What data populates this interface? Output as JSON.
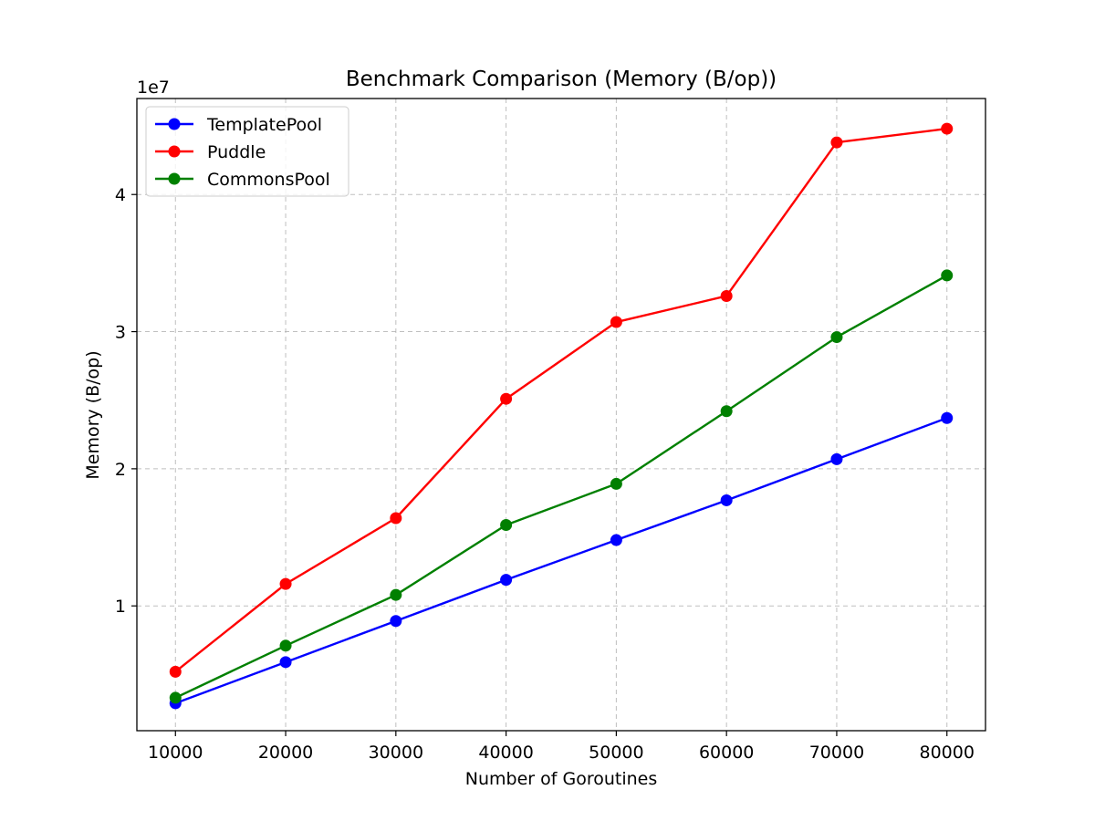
{
  "chart_data": {
    "type": "line",
    "title": "Benchmark Comparison (Memory (B/op))",
    "xlabel": "Number of Goroutines",
    "ylabel": "Memory (B/op)",
    "y_offset_label": "1e7",
    "x": [
      10000,
      20000,
      30000,
      40000,
      50000,
      60000,
      70000,
      80000
    ],
    "x_tick_labels": [
      "10000",
      "20000",
      "30000",
      "40000",
      "50000",
      "60000",
      "70000",
      "80000"
    ],
    "y_ticks": [
      10000000,
      20000000,
      30000000,
      40000000
    ],
    "y_tick_labels": [
      "1",
      "2",
      "3",
      "4"
    ],
    "xlim": [
      6500,
      83500
    ],
    "ylim": [
      900000,
      47000000
    ],
    "grid": true,
    "legend_position": "upper-left",
    "series": [
      {
        "name": "TemplatePool",
        "color": "#0000ff",
        "values": [
          2900000,
          5900000,
          8900000,
          11900000,
          14800000,
          17700000,
          20700000,
          23700000
        ]
      },
      {
        "name": "Puddle",
        "color": "#ff0000",
        "values": [
          5200000,
          11600000,
          16400000,
          25100000,
          30700000,
          32600000,
          43800000,
          44800000
        ]
      },
      {
        "name": "CommonsPool",
        "color": "#008000",
        "values": [
          3300000,
          7100000,
          10800000,
          15900000,
          18900000,
          24200000,
          29600000,
          34100000
        ]
      }
    ]
  }
}
